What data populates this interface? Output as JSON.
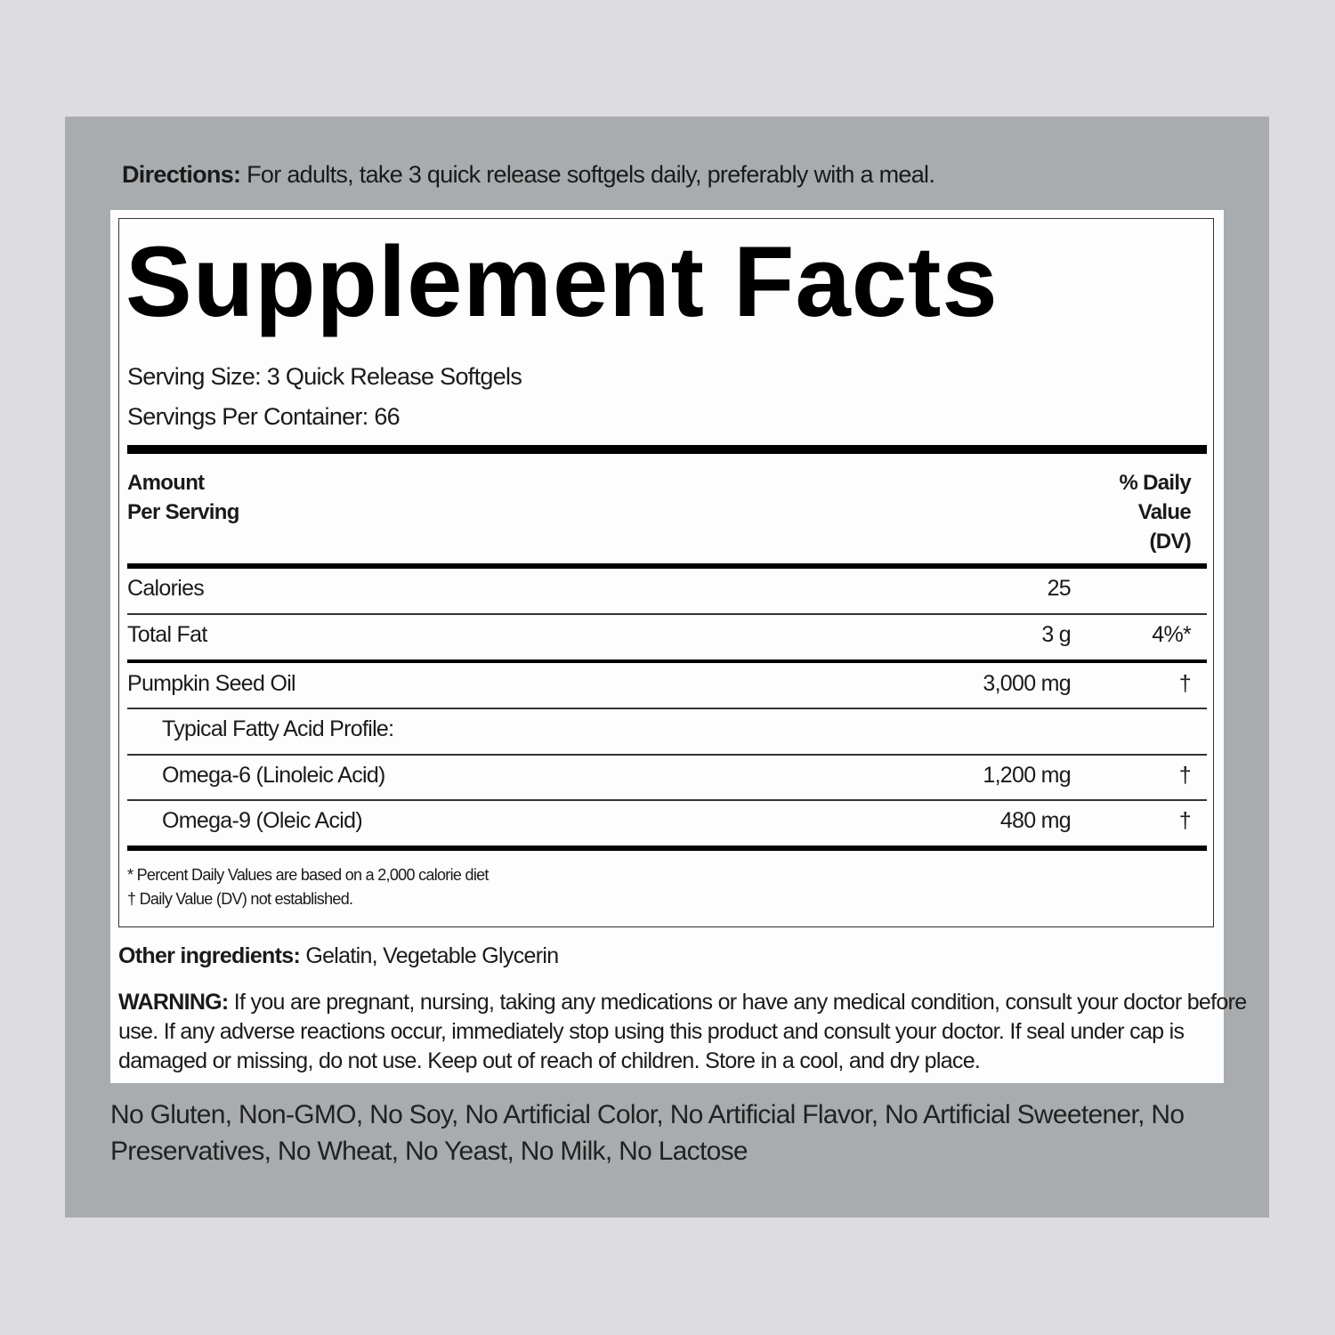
{
  "directions": {
    "label": "Directions:",
    "text": " For adults, take 3 quick release softgels daily, preferably with a meal."
  },
  "facts": {
    "title": "Supplement Facts",
    "serving_size": "Serving Size: 3 Quick Release Softgels",
    "servings_per_container": "Servings Per Container: 66",
    "header": {
      "amount_line1": "Amount",
      "amount_line2": "Per Serving",
      "dv_line1": "% Daily",
      "dv_line2": "Value",
      "dv_line3": "(DV)"
    },
    "rows": [
      {
        "name": "Calories",
        "amount": "25",
        "dv": ""
      },
      {
        "name": "Total Fat",
        "amount": "3 g",
        "dv": "4%*"
      },
      {
        "name": "Pumpkin Seed Oil",
        "amount": "3,000 mg",
        "dv": "†"
      },
      {
        "name": "Typical Fatty Acid Profile:",
        "amount": "",
        "dv": ""
      },
      {
        "name": "Omega-6 (Linoleic Acid)",
        "amount": "1,200 mg",
        "dv": "†"
      },
      {
        "name": "Omega-9 (Oleic Acid)",
        "amount": "480 mg",
        "dv": "†"
      }
    ],
    "footnote1": "* Percent Daily Values are based on a 2,000 calorie diet",
    "footnote2": "† Daily Value (DV) not established."
  },
  "other_ingredients": {
    "label": "Other ingredients:",
    "text": " Gelatin, Vegetable Glycerin"
  },
  "warning": {
    "label": "WARNING:",
    "line1": " If you are pregnant, nursing, taking any medications or have any medical condition, consult your doctor before",
    "line2": "use. If any adverse reactions occur, immediately stop using this product and consult your doctor. If seal under cap is",
    "line3": "damaged or missing, do not use. Keep out of reach of children. Store in a cool, and dry place."
  },
  "free_from": {
    "line1": "No Gluten, Non-GMO, No Soy, No Artificial Color, No Artificial Flavor, No Artificial Sweetener, No",
    "line2": "Preservatives, No Wheat, No Yeast, No Milk, No Lactose"
  }
}
